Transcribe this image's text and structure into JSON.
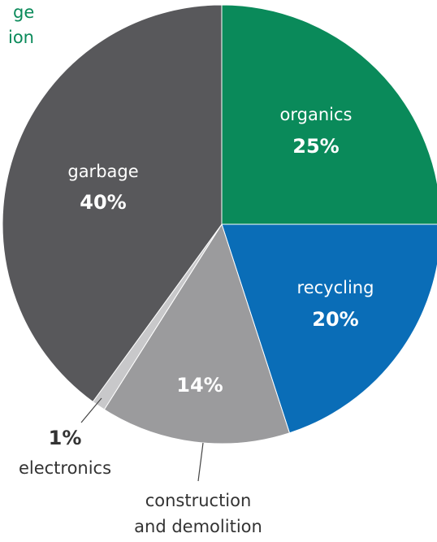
{
  "chart_data": {
    "type": "pie",
    "title": "",
    "slices": [
      {
        "label": "organics",
        "pct_label": "25%",
        "value": 25,
        "color": "#0a8a5a"
      },
      {
        "label": "recycling",
        "pct_label": "20%",
        "value": 20,
        "color": "#0a6db7"
      },
      {
        "label": "construction and demolition",
        "pct_label": "14%",
        "value": 14,
        "color": "#9b9b9d"
      },
      {
        "label": "electronics",
        "pct_label": "1%",
        "value": 1,
        "color": "#c8c8ca"
      },
      {
        "label": "garbage",
        "pct_label": "40%",
        "value": 40,
        "color": "#58585b"
      }
    ],
    "labels": {
      "organics_name": "organics",
      "organics_pct": "25%",
      "recycling_name": "recycling",
      "recycling_pct": "20%",
      "garbage_name": "garbage",
      "garbage_pct": "40%",
      "construction_pct": "14%",
      "construction_line1": "construction",
      "construction_line2": "and demolition",
      "electronics_pct": "1%",
      "electronics_name": "electronics",
      "cutoff_line1": "ge",
      "cutoff_line2": "ion"
    },
    "label_color_cutoff": "#0a8a5a"
  }
}
